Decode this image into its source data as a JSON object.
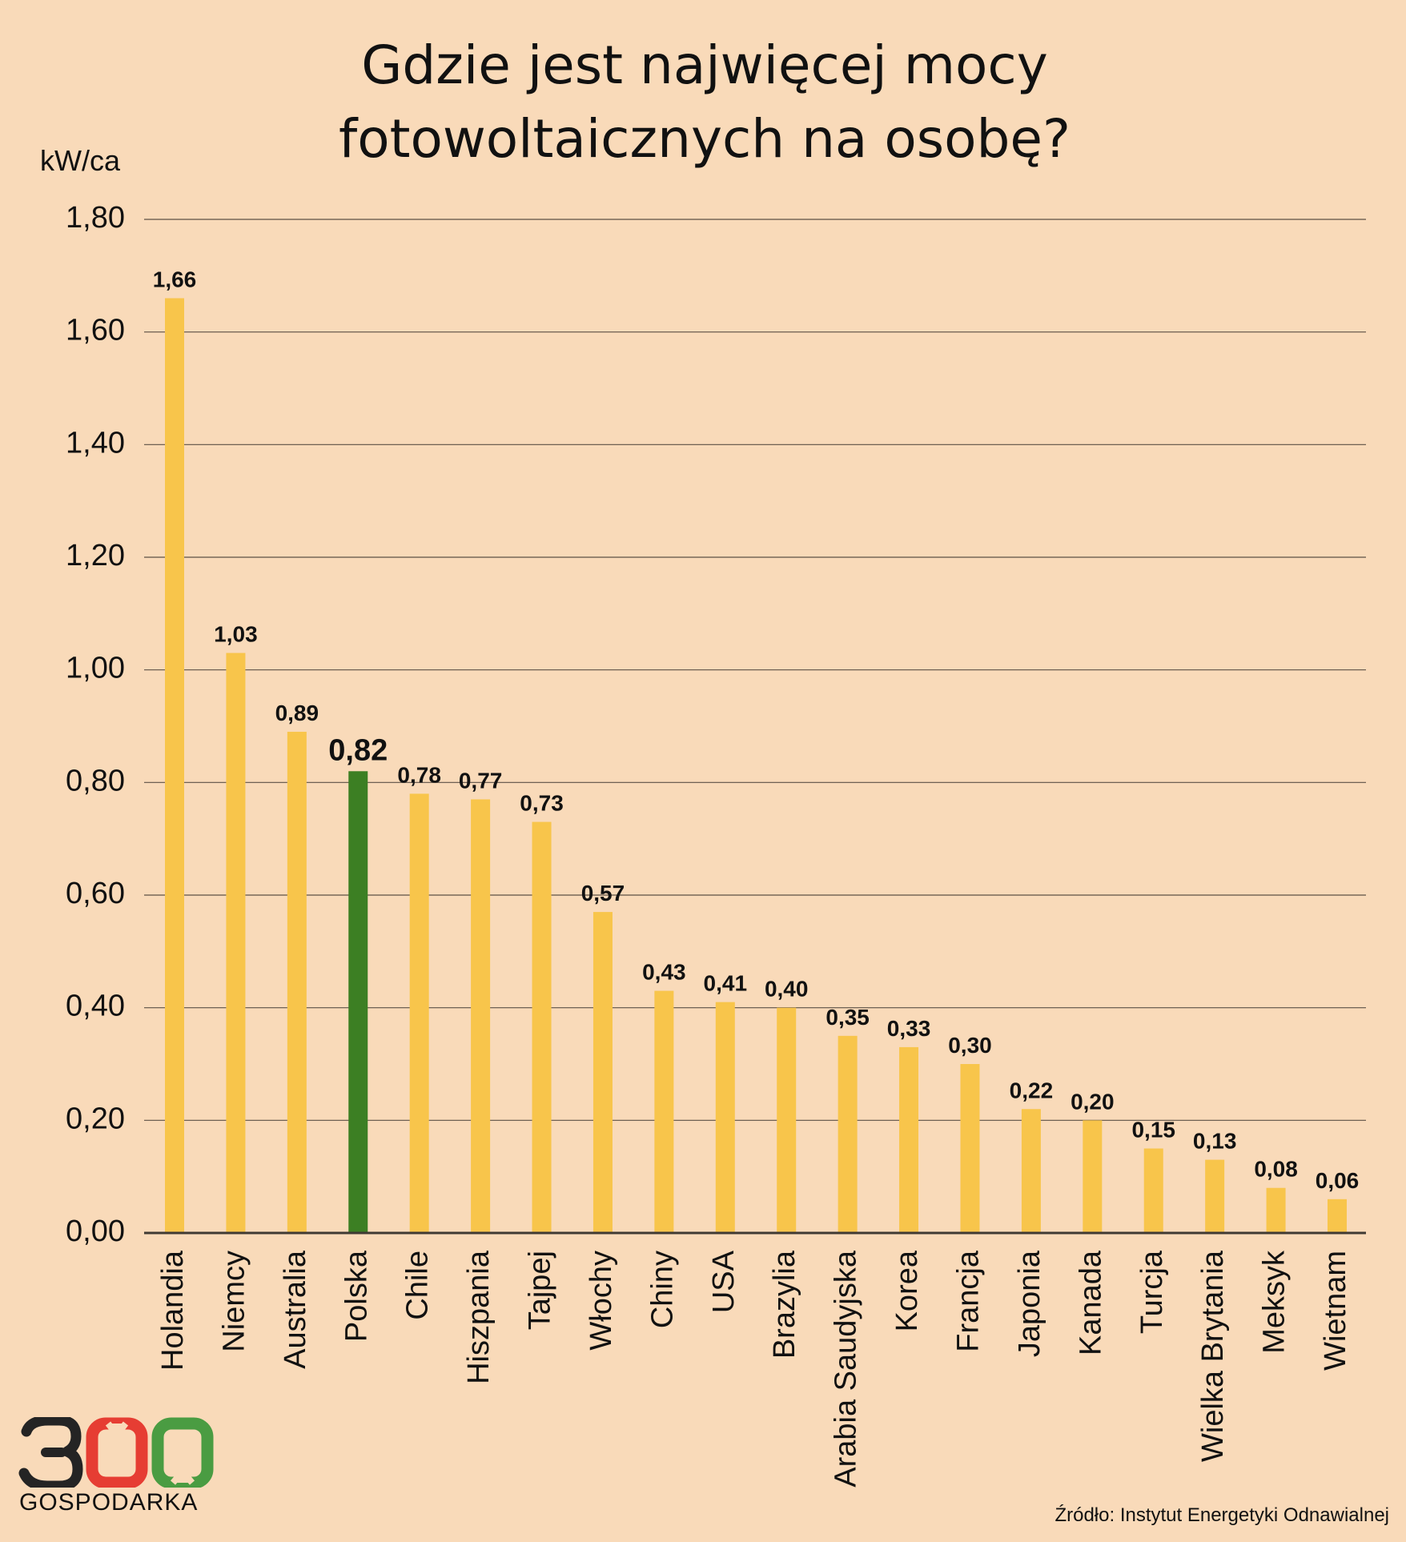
{
  "page_title": "Gdzie jest najwięcej mocy fotowoltaicznych na osobę?",
  "chart_data": {
    "type": "bar",
    "title": "Gdzie jest najwięcej mocy fotowoltaicznych na osobę?",
    "title_lines": [
      "Gdzie jest najwięcej mocy",
      "fotowoltaicznych na osobę?"
    ],
    "ylabel": "kW/ca",
    "xlabel": "",
    "ylim": [
      0,
      1.8
    ],
    "y_ticks": [
      "0,00",
      "0,20",
      "0,40",
      "0,60",
      "0,80",
      "1,00",
      "1,20",
      "1,40",
      "1,60",
      "1,80"
    ],
    "categories": [
      "Holandia",
      "Niemcy",
      "Australia",
      "Polska",
      "Chile",
      "Hiszpania",
      "Tajpej",
      "Włochy",
      "Chiny",
      "USA",
      "Brazylia",
      "Arabia Saudyjska",
      "Korea",
      "Francja",
      "Japonia",
      "Kanada",
      "Turcja",
      "Wielka Brytania",
      "Meksyk",
      "Wietnam"
    ],
    "values": [
      1.66,
      1.03,
      0.89,
      0.82,
      0.78,
      0.77,
      0.73,
      0.57,
      0.43,
      0.41,
      0.4,
      0.35,
      0.33,
      0.3,
      0.22,
      0.2,
      0.15,
      0.13,
      0.08,
      0.06
    ],
    "value_labels": [
      "1,66",
      "1,03",
      "0,89",
      "0,82",
      "0,78",
      "0,77",
      "0,73",
      "0,57",
      "0,43",
      "0,41",
      "0,40",
      "0,35",
      "0,33",
      "0,30",
      "0,22",
      "0,20",
      "0,15",
      "0,13",
      "0,08",
      "0,06"
    ],
    "highlight_category": "Polska",
    "grid": true,
    "legend": "none",
    "colors": {
      "background": "#f9dab9",
      "bar": "#f8c54b",
      "highlight_bar": "#3c7f23",
      "grid": "#5d5146",
      "text": "#111111"
    }
  },
  "source": "Źródło: Instytut Energetyki Odnawialnej",
  "logo": {
    "number": "300",
    "text": "GOSPODARKA",
    "colors": [
      "#242424",
      "#e63d33",
      "#4a9c42"
    ]
  }
}
